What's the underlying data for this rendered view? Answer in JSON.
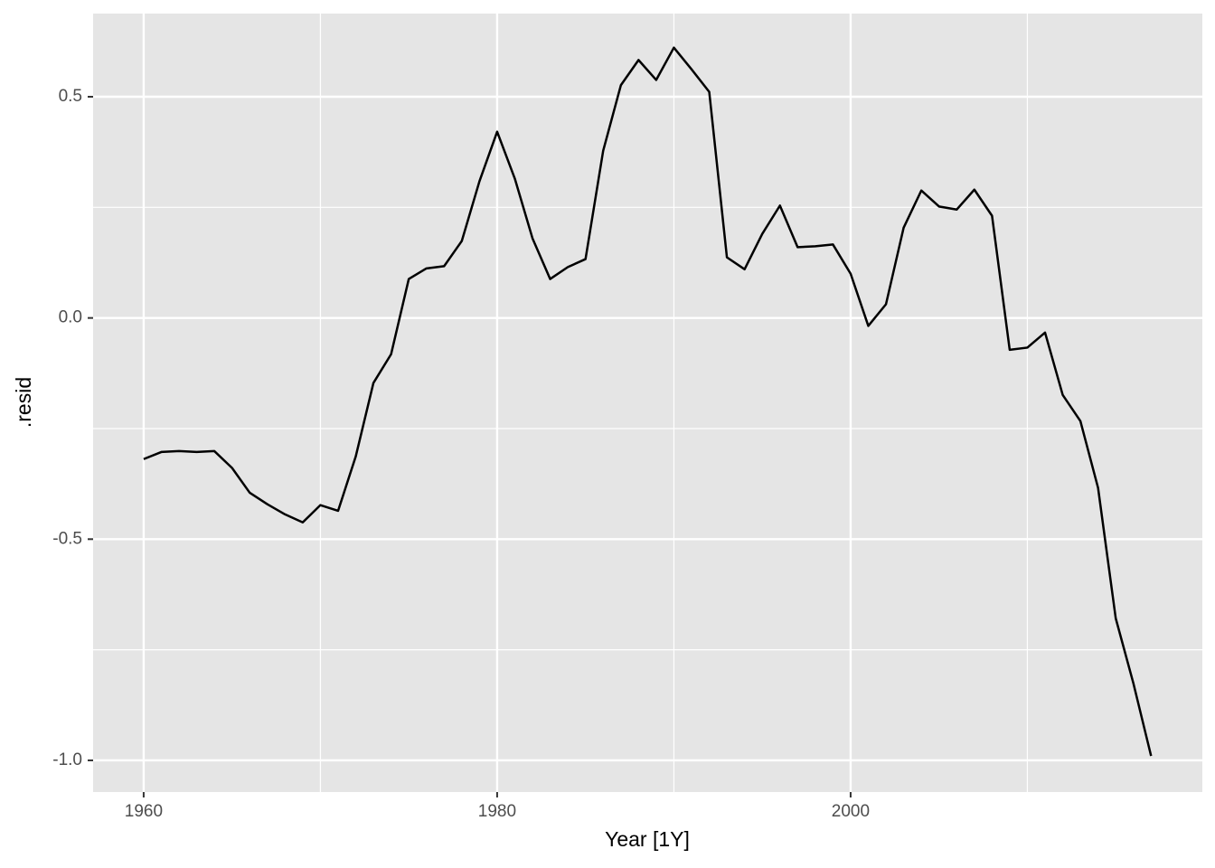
{
  "chart_data": {
    "type": "line",
    "xlabel": "Year [1Y]",
    "ylabel": ".resid",
    "x": [
      1960,
      1961,
      1962,
      1963,
      1964,
      1965,
      1966,
      1967,
      1968,
      1969,
      1970,
      1971,
      1972,
      1973,
      1974,
      1975,
      1976,
      1977,
      1978,
      1979,
      1980,
      1981,
      1982,
      1983,
      1984,
      1985,
      1986,
      1987,
      1988,
      1989,
      1990,
      1991,
      1992,
      1993,
      1994,
      1995,
      1996,
      1997,
      1998,
      1999,
      2000,
      2001,
      2002,
      2003,
      2004,
      2005,
      2006,
      2007,
      2008,
      2009,
      2010,
      2011,
      2012,
      2013,
      2014,
      2015,
      2016,
      2017
    ],
    "values": [
      -0.319,
      -0.303,
      -0.301,
      -0.303,
      -0.301,
      -0.339,
      -0.395,
      -0.421,
      -0.444,
      -0.462,
      -0.423,
      -0.436,
      -0.313,
      -0.147,
      -0.082,
      0.088,
      0.112,
      0.117,
      0.174,
      0.309,
      0.421,
      0.315,
      0.18,
      0.088,
      0.115,
      0.133,
      0.378,
      0.526,
      0.583,
      0.538,
      0.611,
      0.562,
      0.511,
      0.137,
      0.11,
      0.19,
      0.254,
      0.16,
      0.162,
      0.166,
      0.1,
      -0.018,
      0.031,
      0.204,
      0.288,
      0.252,
      0.245,
      0.29,
      0.231,
      -0.072,
      -0.067,
      -0.033,
      -0.174,
      -0.233,
      -0.384,
      -0.679,
      -0.826,
      -0.99
    ],
    "color": "#000000",
    "xlim": [
      1957.14,
      2019.9
    ],
    "ylim": [
      -1.0716,
      0.688
    ],
    "xticks": [
      1960,
      1980,
      2000
    ],
    "yticks": [
      {
        "value": -1,
        "label": "-1.0"
      },
      -0.5,
      {
        "value": 0,
        "label": "0.0"
      },
      0.5
    ],
    "xminor": [
      1970,
      1990,
      2010
    ],
    "yminor": [
      -0.75,
      -0.25,
      0.25
    ],
    "grid": true
  }
}
